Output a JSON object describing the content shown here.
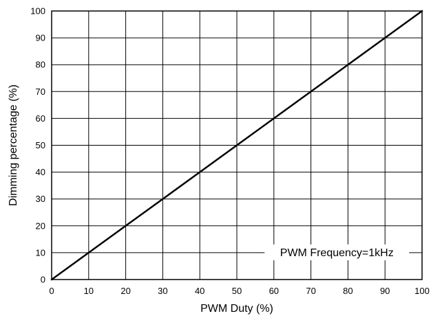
{
  "chart_data": {
    "type": "line",
    "title": "",
    "xlabel": "PWM Duty (%)",
    "ylabel": "Dimming percentage (%)",
    "xlim": [
      0,
      100
    ],
    "ylim": [
      0,
      100
    ],
    "x_ticks": [
      0,
      10,
      20,
      30,
      40,
      50,
      60,
      70,
      80,
      90,
      100
    ],
    "y_ticks": [
      0,
      10,
      20,
      30,
      40,
      50,
      60,
      70,
      80,
      90,
      100
    ],
    "grid": true,
    "series": [
      {
        "x": [
          0,
          10,
          20,
          30,
          40,
          50,
          60,
          70,
          80,
          90,
          100
        ],
        "y": [
          0,
          10,
          20,
          30,
          40,
          50,
          60,
          70,
          80,
          90,
          100
        ],
        "color": "#000000"
      }
    ],
    "annotations": [
      {
        "text": "PWM Frequency=1kHz",
        "x": 77,
        "y": 10
      }
    ]
  }
}
